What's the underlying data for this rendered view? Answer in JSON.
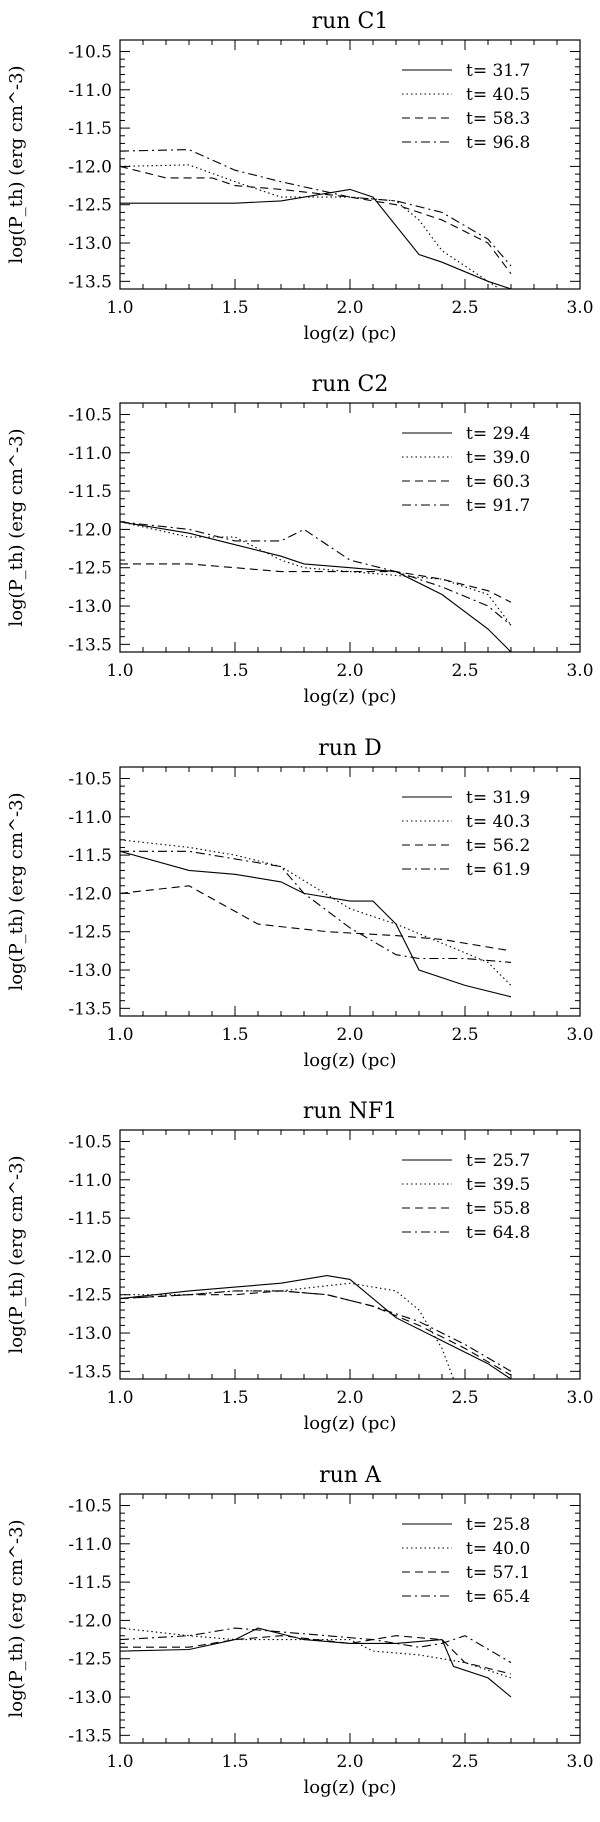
{
  "chart_data": [
    {
      "type": "line",
      "title": "run C1",
      "xlabel": "log(z) (pc)",
      "ylabel": "log(P_th) (erg cm^-3)",
      "xlim": [
        1.0,
        3.0
      ],
      "ylim": [
        -13.6,
        -10.35
      ],
      "xticks": [
        "1.0",
        "1.5",
        "2.0",
        "2.5",
        "3.0"
      ],
      "yticks": [
        "-10.5",
        "-11.0",
        "-11.5",
        "-12.0",
        "-12.5",
        "-13.0",
        "-13.5"
      ],
      "legend_position": "top-right",
      "series": [
        {
          "name": "t= 31.7",
          "style": "solid",
          "x": [
            1.0,
            1.3,
            1.5,
            1.7,
            2.0,
            2.1,
            2.3,
            2.4,
            2.6,
            2.7
          ],
          "y": [
            -12.48,
            -12.48,
            -12.48,
            -12.45,
            -12.3,
            -12.4,
            -13.15,
            -13.25,
            -13.5,
            -13.6
          ]
        },
        {
          "name": "t= 40.5",
          "style": "dotted",
          "x": [
            1.0,
            1.3,
            1.5,
            1.7,
            2.0,
            2.2,
            2.3,
            2.4,
            2.6,
            2.65
          ],
          "y": [
            -12.0,
            -11.98,
            -12.2,
            -12.4,
            -12.4,
            -12.45,
            -12.7,
            -13.1,
            -13.5,
            -13.6
          ]
        },
        {
          "name": "t= 58.3",
          "style": "dashed",
          "x": [
            1.0,
            1.2,
            1.4,
            1.5,
            1.7,
            2.0,
            2.2,
            2.4,
            2.6,
            2.7
          ],
          "y": [
            -12.0,
            -12.15,
            -12.15,
            -12.25,
            -12.3,
            -12.4,
            -12.5,
            -12.7,
            -13.0,
            -13.4
          ]
        },
        {
          "name": "t= 96.8",
          "style": "dash-dot",
          "x": [
            1.0,
            1.3,
            1.5,
            1.7,
            2.0,
            2.2,
            2.4,
            2.6,
            2.7
          ],
          "y": [
            -11.8,
            -11.78,
            -12.05,
            -12.2,
            -12.4,
            -12.45,
            -12.6,
            -12.95,
            -13.3
          ]
        }
      ]
    },
    {
      "type": "line",
      "title": "run C2",
      "xlabel": "log(z) (pc)",
      "ylabel": "log(P_th) (erg cm^-3)",
      "xlim": [
        1.0,
        3.0
      ],
      "ylim": [
        -13.6,
        -10.35
      ],
      "xticks": [
        "1.0",
        "1.5",
        "2.0",
        "2.5",
        "3.0"
      ],
      "yticks": [
        "-10.5",
        "-11.0",
        "-11.5",
        "-12.0",
        "-12.5",
        "-13.0",
        "-13.5"
      ],
      "legend_position": "top-right",
      "series": [
        {
          "name": "t= 29.4",
          "style": "solid",
          "x": [
            1.0,
            1.3,
            1.5,
            1.7,
            1.8,
            2.0,
            2.2,
            2.4,
            2.6,
            2.7
          ],
          "y": [
            -11.9,
            -12.05,
            -12.2,
            -12.35,
            -12.45,
            -12.5,
            -12.55,
            -12.85,
            -13.3,
            -13.6
          ]
        },
        {
          "name": "t= 39.0",
          "style": "dotted",
          "x": [
            1.0,
            1.3,
            1.5,
            1.7,
            1.8,
            2.0,
            2.2,
            2.4,
            2.6,
            2.7
          ],
          "y": [
            -11.9,
            -12.1,
            -12.1,
            -12.4,
            -12.5,
            -12.55,
            -12.6,
            -12.65,
            -12.85,
            -13.25
          ]
        },
        {
          "name": "t= 60.3",
          "style": "dashed",
          "x": [
            1.0,
            1.3,
            1.5,
            1.7,
            2.0,
            2.2,
            2.4,
            2.6,
            2.7
          ],
          "y": [
            -12.45,
            -12.45,
            -12.5,
            -12.55,
            -12.55,
            -12.55,
            -12.65,
            -12.8,
            -12.95
          ]
        },
        {
          "name": "t= 91.7",
          "style": "dash-dot",
          "x": [
            1.0,
            1.3,
            1.5,
            1.7,
            1.8,
            2.0,
            2.2,
            2.4,
            2.6,
            2.7
          ],
          "y": [
            -11.9,
            -12.0,
            -12.15,
            -12.15,
            -12.0,
            -12.4,
            -12.55,
            -12.75,
            -13.0,
            -13.25
          ]
        }
      ]
    },
    {
      "type": "line",
      "title": "run D",
      "xlabel": "log(z) (pc)",
      "ylabel": "log(P_th) (erg cm^-3)",
      "xlim": [
        1.0,
        3.0
      ],
      "ylim": [
        -13.6,
        -10.35
      ],
      "xticks": [
        "1.0",
        "1.5",
        "2.0",
        "2.5",
        "3.0"
      ],
      "yticks": [
        "-10.5",
        "-11.0",
        "-11.5",
        "-12.0",
        "-12.5",
        "-13.0",
        "-13.5"
      ],
      "legend_position": "top-right",
      "series": [
        {
          "name": "t= 31.9",
          "style": "solid",
          "x": [
            1.0,
            1.3,
            1.5,
            1.7,
            1.8,
            2.0,
            2.1,
            2.2,
            2.3,
            2.5,
            2.7
          ],
          "y": [
            -11.45,
            -11.7,
            -11.75,
            -11.85,
            -12.0,
            -12.1,
            -12.1,
            -12.4,
            -13.0,
            -13.2,
            -13.35
          ]
        },
        {
          "name": "t= 40.3",
          "style": "dotted",
          "x": [
            1.0,
            1.3,
            1.5,
            1.7,
            2.0,
            2.2,
            2.4,
            2.6,
            2.7
          ],
          "y": [
            -11.3,
            -11.4,
            -11.5,
            -11.65,
            -12.2,
            -12.4,
            -12.65,
            -12.9,
            -13.2
          ]
        },
        {
          "name": "t= 56.2",
          "style": "dashed",
          "x": [
            1.0,
            1.3,
            1.6,
            1.9,
            2.2,
            2.4,
            2.7
          ],
          "y": [
            -12.0,
            -11.9,
            -12.4,
            -12.5,
            -12.55,
            -12.6,
            -12.75
          ]
        },
        {
          "name": "t= 61.9",
          "style": "dash-dot",
          "x": [
            1.0,
            1.3,
            1.5,
            1.7,
            1.8,
            2.0,
            2.2,
            2.3,
            2.5,
            2.7
          ],
          "y": [
            -11.45,
            -11.45,
            -11.55,
            -11.65,
            -12.0,
            -12.45,
            -12.8,
            -12.85,
            -12.85,
            -12.9
          ]
        }
      ]
    },
    {
      "type": "line",
      "title": "run NF1",
      "xlabel": "log(z) (pc)",
      "ylabel": "log(P_th) (erg cm^-3)",
      "xlim": [
        1.0,
        3.0
      ],
      "ylim": [
        -13.6,
        -10.35
      ],
      "xticks": [
        "1.0",
        "1.5",
        "2.0",
        "2.5",
        "3.0"
      ],
      "yticks": [
        "-10.5",
        "-11.0",
        "-11.5",
        "-12.0",
        "-12.5",
        "-13.0",
        "-13.5"
      ],
      "legend_position": "top-right",
      "series": [
        {
          "name": "t= 25.7",
          "style": "solid",
          "x": [
            1.0,
            1.3,
            1.5,
            1.7,
            1.9,
            2.0,
            2.1,
            2.2,
            2.4,
            2.6,
            2.7
          ],
          "y": [
            -12.55,
            -12.45,
            -12.4,
            -12.35,
            -12.25,
            -12.3,
            -12.55,
            -12.8,
            -13.1,
            -13.4,
            -13.6
          ]
        },
        {
          "name": "t= 39.5",
          "style": "dotted",
          "x": [
            1.0,
            1.3,
            1.5,
            1.7,
            2.0,
            2.2,
            2.3,
            2.4,
            2.45
          ],
          "y": [
            -12.5,
            -12.5,
            -12.45,
            -12.45,
            -12.35,
            -12.45,
            -12.7,
            -13.2,
            -13.6
          ]
        },
        {
          "name": "t= 55.8",
          "style": "dashed",
          "x": [
            1.0,
            1.3,
            1.5,
            1.7,
            1.9,
            2.1,
            2.3,
            2.5,
            2.7
          ],
          "y": [
            -12.55,
            -12.5,
            -12.5,
            -12.45,
            -12.5,
            -12.65,
            -12.9,
            -13.2,
            -13.55
          ]
        },
        {
          "name": "t= 64.8",
          "style": "dash-dot",
          "x": [
            1.0,
            1.3,
            1.5,
            1.7,
            1.9,
            2.1,
            2.3,
            2.5,
            2.7
          ],
          "y": [
            -12.55,
            -12.5,
            -12.45,
            -12.45,
            -12.5,
            -12.65,
            -12.85,
            -13.15,
            -13.5
          ]
        }
      ]
    },
    {
      "type": "line",
      "title": "run A",
      "xlabel": "log(z) (pc)",
      "ylabel": "log(P_th) (erg cm^-3)",
      "xlim": [
        1.0,
        3.0
      ],
      "ylim": [
        -13.6,
        -10.35
      ],
      "xticks": [
        "1.0",
        "1.5",
        "2.0",
        "2.5",
        "3.0"
      ],
      "yticks": [
        "-10.5",
        "-11.0",
        "-11.5",
        "-12.0",
        "-12.5",
        "-13.0",
        "-13.5"
      ],
      "legend_position": "top-right",
      "series": [
        {
          "name": "t= 25.8",
          "style": "solid",
          "x": [
            1.0,
            1.3,
            1.5,
            1.6,
            1.8,
            2.0,
            2.2,
            2.4,
            2.45,
            2.6,
            2.7
          ],
          "y": [
            -12.4,
            -12.38,
            -12.25,
            -12.1,
            -12.25,
            -12.3,
            -12.3,
            -12.25,
            -12.6,
            -12.75,
            -13.0
          ]
        },
        {
          "name": "t= 40.0",
          "style": "dotted",
          "x": [
            1.0,
            1.3,
            1.5,
            1.7,
            2.0,
            2.1,
            2.3,
            2.5,
            2.7
          ],
          "y": [
            -12.1,
            -12.2,
            -12.25,
            -12.25,
            -12.25,
            -12.4,
            -12.45,
            -12.55,
            -12.75
          ]
        },
        {
          "name": "t= 57.1",
          "style": "dashed",
          "x": [
            1.0,
            1.3,
            1.5,
            1.7,
            2.0,
            2.2,
            2.4,
            2.5,
            2.7
          ],
          "y": [
            -12.35,
            -12.35,
            -12.25,
            -12.2,
            -12.3,
            -12.2,
            -12.25,
            -12.55,
            -12.7
          ]
        },
        {
          "name": "t= 65.4",
          "style": "dash-dot",
          "x": [
            1.0,
            1.3,
            1.5,
            1.7,
            1.9,
            2.1,
            2.3,
            2.4,
            2.5,
            2.7
          ],
          "y": [
            -12.25,
            -12.2,
            -12.1,
            -12.15,
            -12.2,
            -12.25,
            -12.35,
            -12.3,
            -12.2,
            -12.55
          ]
        }
      ]
    }
  ]
}
